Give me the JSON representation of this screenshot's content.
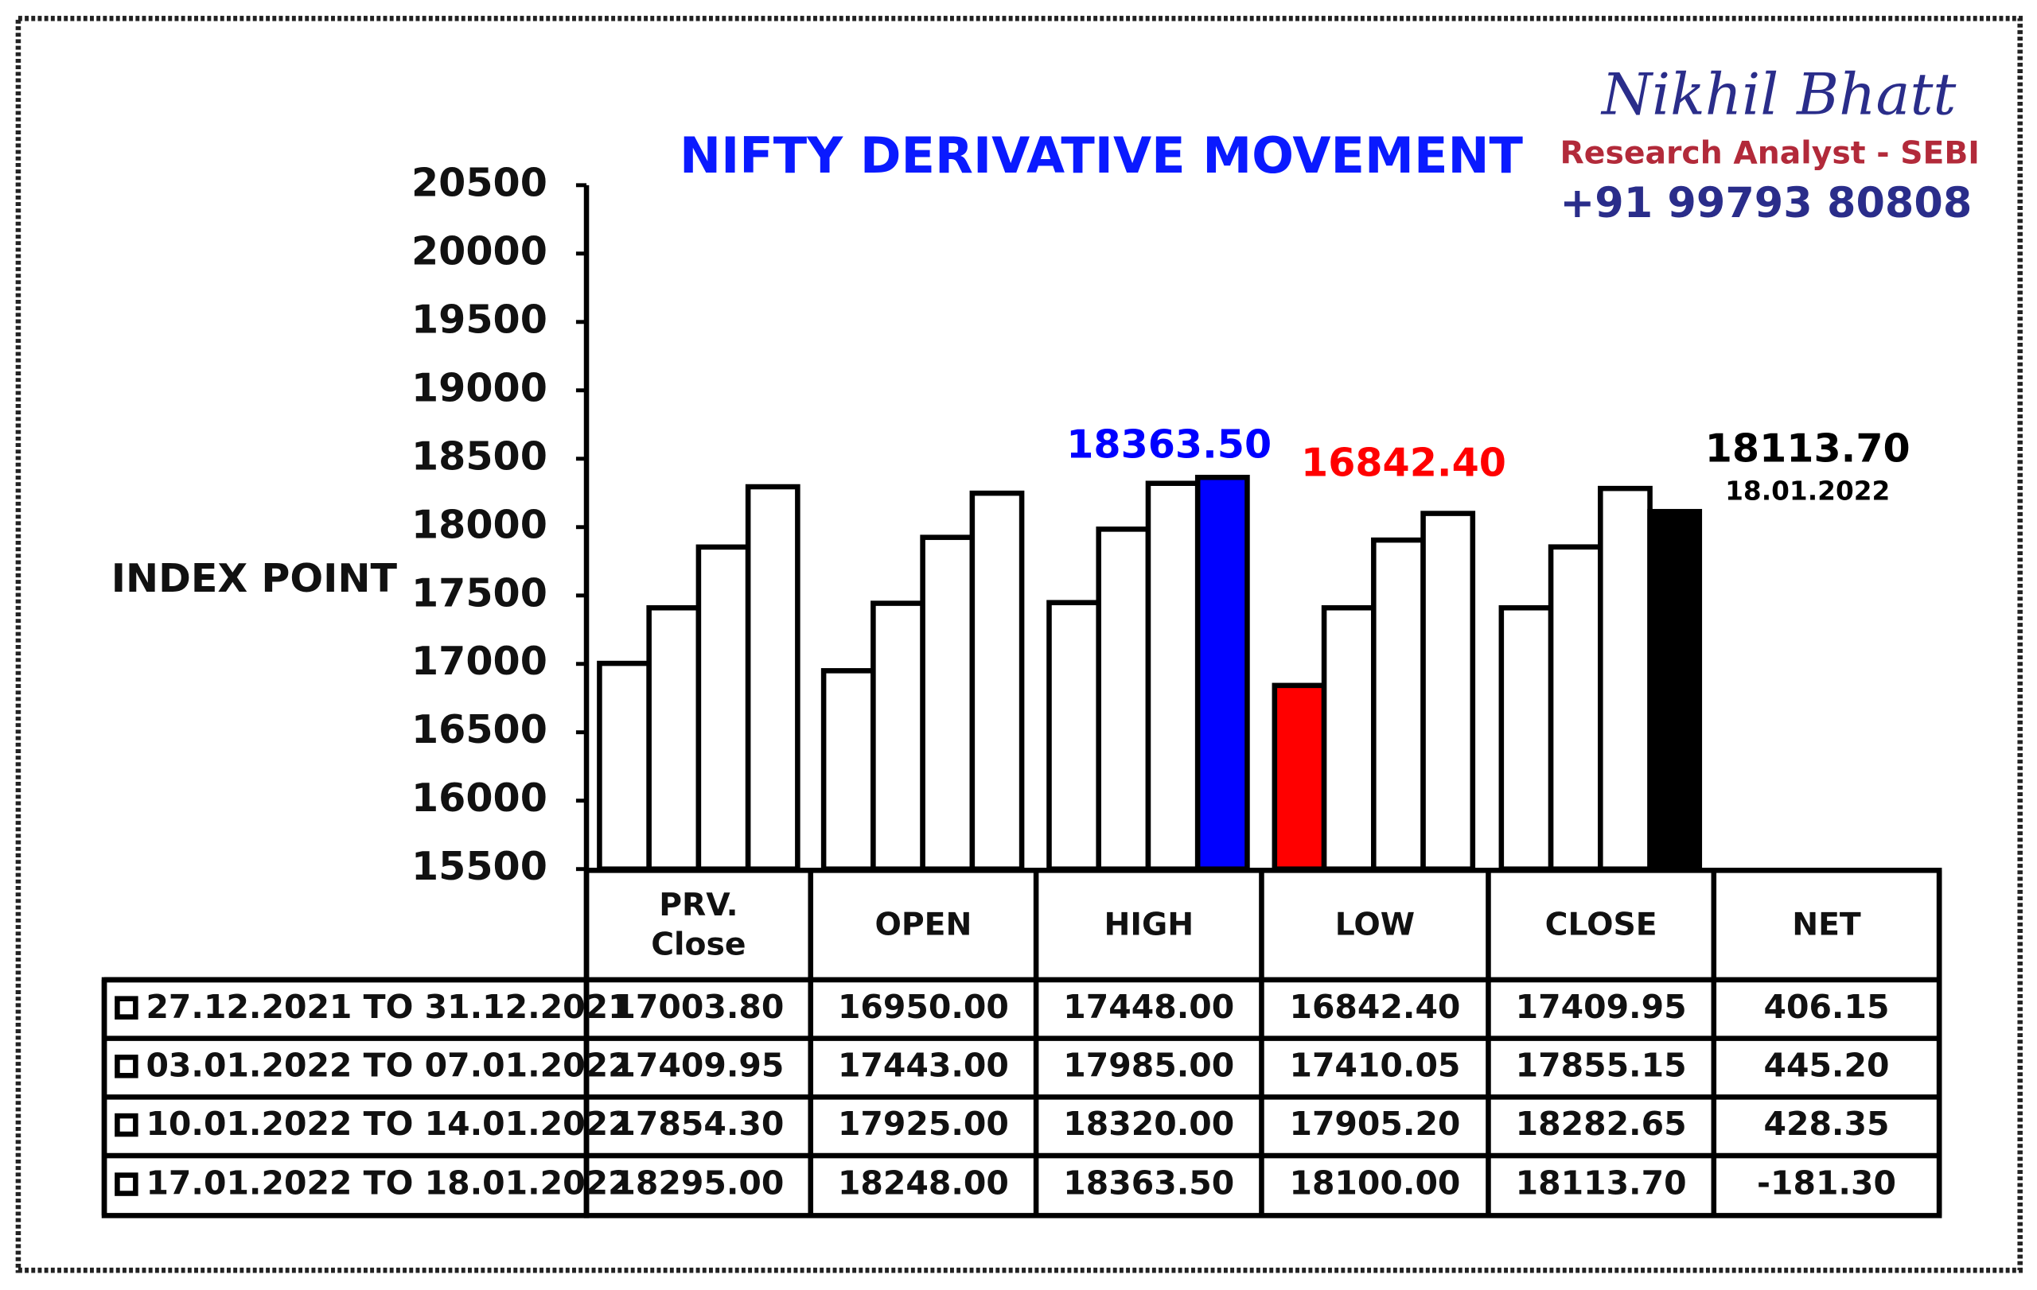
{
  "chart_data": {
    "type": "bar",
    "title": "NIFTY DERIVATIVE MOVEMENT",
    "y_label": "INDEX POINT",
    "categories": [
      "PRV. Close",
      "OPEN",
      "HIGH",
      "LOW",
      "CLOSE"
    ],
    "ylim": [
      15500,
      20500
    ],
    "yticks": [
      15500,
      16000,
      16500,
      17000,
      17500,
      18000,
      18500,
      19000,
      19500,
      20000,
      20500
    ],
    "series": [
      {
        "name": "27.12.2021 TO 31.12.2021",
        "color": "#ffffff",
        "colors": [
          "#ffffff",
          "#ffffff",
          "#ffffff",
          "#ff0000",
          "#ffffff"
        ],
        "values": [
          17003.8,
          16950,
          17448,
          16842.4,
          17409.95
        ],
        "value_labels": [
          "17003.80",
          "16950.00",
          "17448.00",
          "16842.40",
          "17409.95"
        ]
      },
      {
        "name": "03.01.2022 TO 07.01.2022",
        "color": "#ffffff",
        "colors": [
          "#ffffff",
          "#ffffff",
          "#ffffff",
          "#ffffff",
          "#ffffff"
        ],
        "values": [
          17409.95,
          17443,
          17985,
          17410.05,
          17855.15
        ],
        "value_labels": [
          "17409.95",
          "17443.00",
          "17985.00",
          "17410.05",
          "17855.15"
        ]
      },
      {
        "name": "10.01.2022 TO 14.01.2022",
        "color": "#ffffff",
        "colors": [
          "#ffffff",
          "#ffffff",
          "#ffffff",
          "#ffffff",
          "#ffffff"
        ],
        "values": [
          17854.3,
          17925,
          18320,
          17905.2,
          18282.65
        ],
        "value_labels": [
          "17854.30",
          "17925.00",
          "18320.00",
          "17905.20",
          "18282.65"
        ]
      },
      {
        "name": "17.01.2022 TO 18.01.2022",
        "color": "#ffffff",
        "colors": [
          "#ffffff",
          "#ffffff",
          "#0000ff",
          "#ffffff",
          "#000000"
        ],
        "values": [
          18295,
          18248,
          18363.5,
          18100,
          18113.7
        ],
        "value_labels": [
          "18295.00",
          "18248.00",
          "18363.50",
          "18100.00",
          "18113.70"
        ]
      }
    ],
    "annotations": [
      {
        "text": "18363.50",
        "color": "#0000ff"
      },
      {
        "text": "16842.40",
        "color": "#ff0000"
      },
      {
        "text": "18113.70",
        "color": "#000000"
      },
      {
        "text": "18.01.2022",
        "color": "#000000"
      }
    ],
    "net_header": "NET",
    "net": [
      "406.15",
      "445.20",
      "428.35",
      "-181.30"
    ]
  },
  "branding": {
    "name": "Nikhil Bhatt",
    "role": "Research Analyst - SEBI",
    "phone": "+91 99793 80808"
  }
}
